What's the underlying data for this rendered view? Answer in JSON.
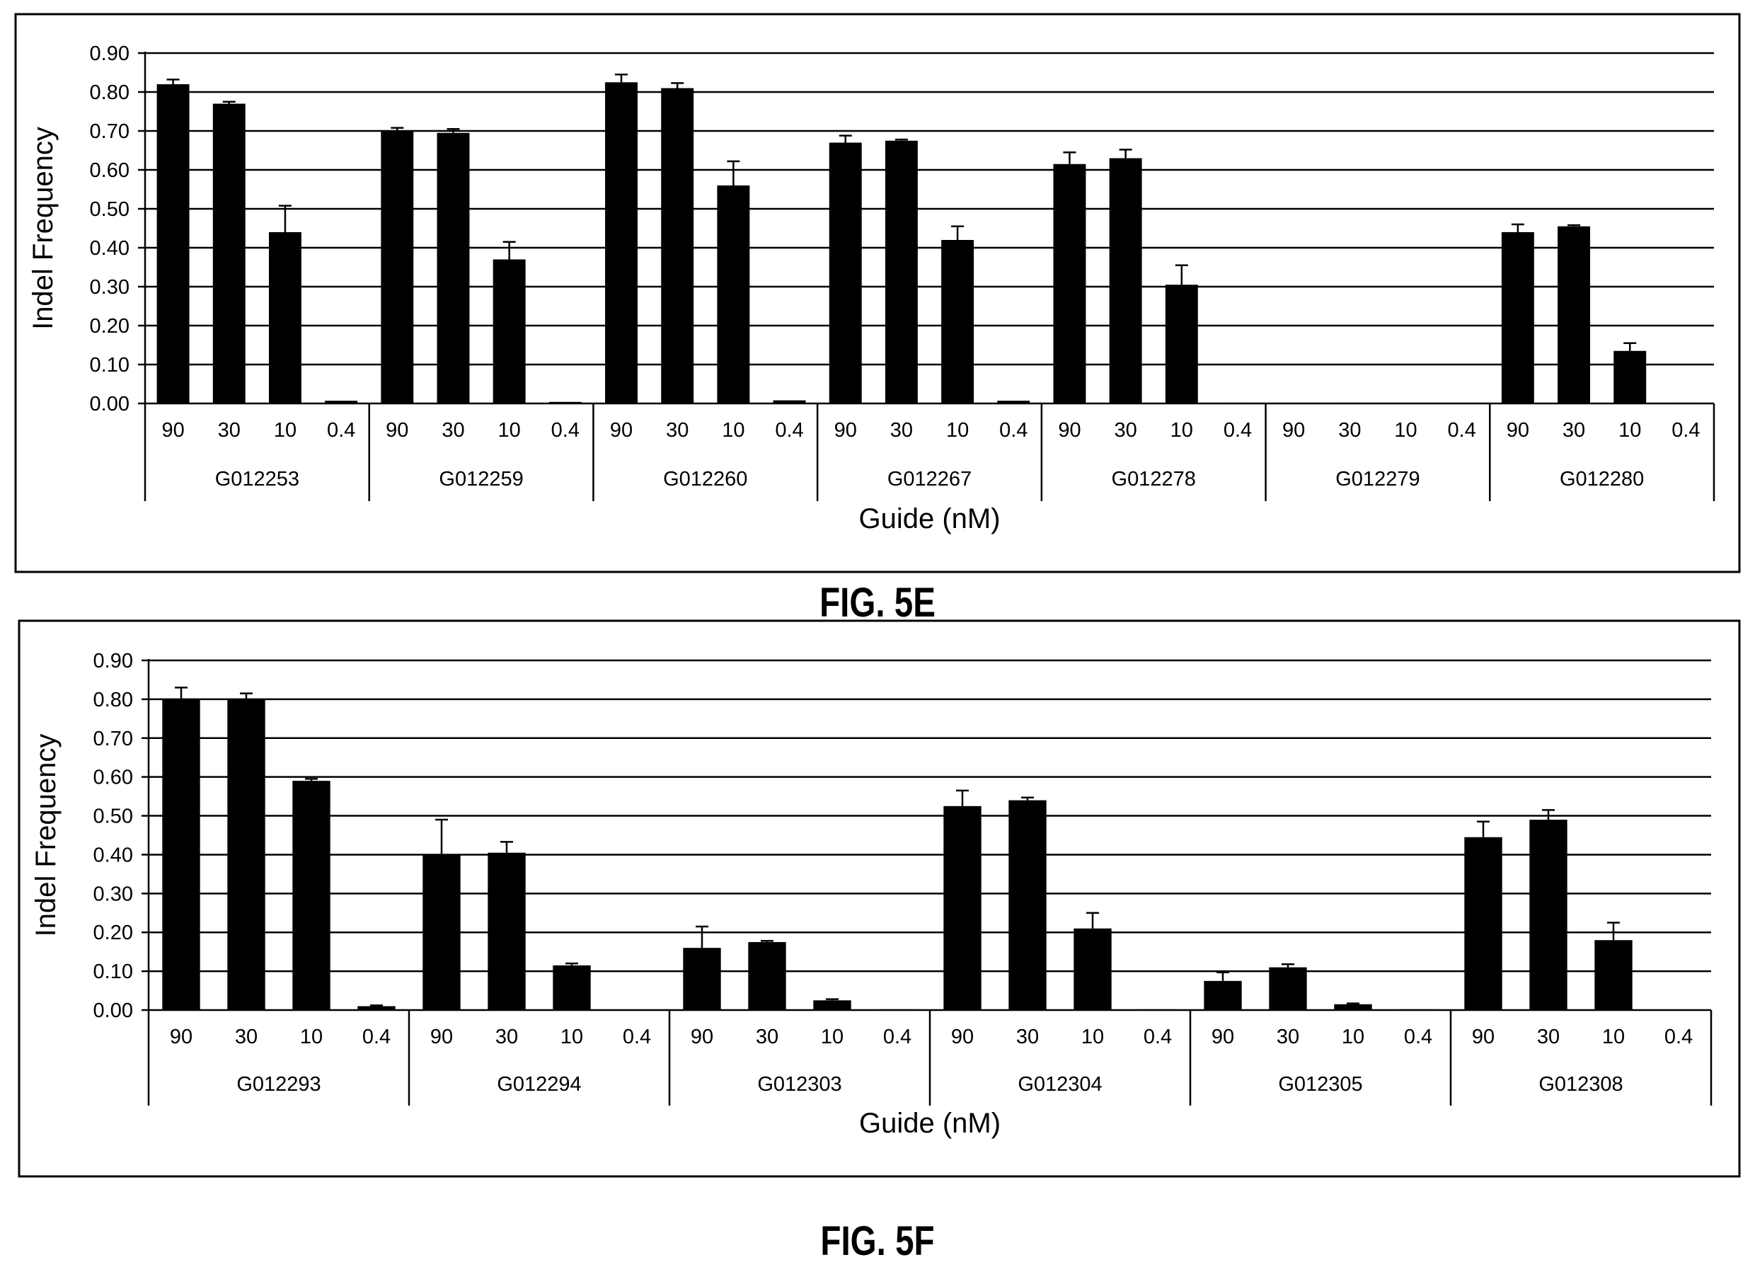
{
  "figures": [
    {
      "label": "FIG. 5E"
    },
    {
      "label": "FIG. 5F"
    }
  ],
  "chart_data": [
    {
      "type": "bar",
      "ylabel": "Indel Frequency",
      "xlabel": "Guide (nM)",
      "ylim": [
        0,
        0.9
      ],
      "yticks": [
        "0.00",
        "0.10",
        "0.20",
        "0.30",
        "0.40",
        "0.50",
        "0.60",
        "0.70",
        "0.80",
        "0.90"
      ],
      "grid": true,
      "concentrations": [
        "90",
        "30",
        "10",
        "0.4"
      ],
      "groups": [
        {
          "name": "G012253",
          "values": [
            0.82,
            0.77,
            0.44,
            0.007
          ],
          "errors": [
            0.012,
            0.005,
            0.068,
            0.0
          ]
        },
        {
          "name": "G012259",
          "values": [
            0.7,
            0.695,
            0.37,
            0.004
          ],
          "errors": [
            0.008,
            0.01,
            0.045,
            0.0
          ]
        },
        {
          "name": "G012260",
          "values": [
            0.825,
            0.81,
            0.56,
            0.008
          ],
          "errors": [
            0.02,
            0.013,
            0.062,
            0.0
          ]
        },
        {
          "name": "G012267",
          "values": [
            0.67,
            0.675,
            0.42,
            0.007
          ],
          "errors": [
            0.018,
            0.003,
            0.035,
            0.0
          ]
        },
        {
          "name": "G012278",
          "values": [
            0.615,
            0.63,
            0.305,
            0.002
          ],
          "errors": [
            0.03,
            0.022,
            0.05,
            0.0
          ]
        },
        {
          "name": "G012279",
          "values": [
            0.0,
            0.002,
            0.001,
            0.001
          ],
          "errors": [
            0.0,
            0.0,
            0.0,
            0.0
          ]
        },
        {
          "name": "G012280",
          "values": [
            0.44,
            0.455,
            0.135,
            0.002
          ],
          "errors": [
            0.02,
            0.003,
            0.02,
            0.0
          ]
        }
      ]
    },
    {
      "type": "bar",
      "ylabel": "Indel Frequency",
      "xlabel": "Guide (nM)",
      "ylim": [
        0,
        0.9
      ],
      "yticks": [
        "0.00",
        "0.10",
        "0.20",
        "0.30",
        "0.40",
        "0.50",
        "0.60",
        "0.70",
        "0.80",
        "0.90"
      ],
      "grid": true,
      "concentrations": [
        "90",
        "30",
        "10",
        "0.4"
      ],
      "groups": [
        {
          "name": "G012293",
          "values": [
            0.8,
            0.8,
            0.59,
            0.01
          ],
          "errors": [
            0.03,
            0.015,
            0.005,
            0.002
          ]
        },
        {
          "name": "G012294",
          "values": [
            0.4,
            0.405,
            0.115,
            0.001
          ],
          "errors": [
            0.09,
            0.028,
            0.005,
            0.0
          ]
        },
        {
          "name": "G012303",
          "values": [
            0.16,
            0.175,
            0.025,
            0.002
          ],
          "errors": [
            0.055,
            0.003,
            0.003,
            0.0
          ]
        },
        {
          "name": "G012304",
          "values": [
            0.525,
            0.54,
            0.21,
            0.002
          ],
          "errors": [
            0.04,
            0.007,
            0.04,
            0.0
          ]
        },
        {
          "name": "G012305",
          "values": [
            0.075,
            0.11,
            0.015,
            0.002
          ],
          "errors": [
            0.022,
            0.008,
            0.002,
            0.0
          ]
        },
        {
          "name": "G012308",
          "values": [
            0.445,
            0.49,
            0.18,
            0.001
          ],
          "errors": [
            0.04,
            0.025,
            0.045,
            0.0
          ]
        }
      ]
    }
  ]
}
